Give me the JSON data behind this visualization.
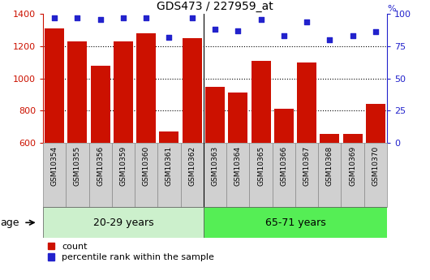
{
  "title": "GDS473 / 227959_at",
  "samples": [
    "GSM10354",
    "GSM10355",
    "GSM10356",
    "GSM10359",
    "GSM10360",
    "GSM10361",
    "GSM10362",
    "GSM10363",
    "GSM10364",
    "GSM10365",
    "GSM10366",
    "GSM10367",
    "GSM10368",
    "GSM10369",
    "GSM10370"
  ],
  "counts": [
    1310,
    1230,
    1080,
    1230,
    1280,
    670,
    1250,
    950,
    910,
    1110,
    810,
    1100,
    655,
    655,
    840
  ],
  "percentiles": [
    97,
    97,
    96,
    97,
    97,
    82,
    97,
    88,
    87,
    96,
    83,
    94,
    80,
    83,
    86
  ],
  "ylim_left": [
    600,
    1400
  ],
  "ylim_right": [
    0,
    100
  ],
  "yticks_left": [
    600,
    800,
    1000,
    1200,
    1400
  ],
  "yticks_right": [
    0,
    25,
    50,
    75,
    100
  ],
  "group1_label": "20-29 years",
  "group2_label": "65-71 years",
  "group1_count": 7,
  "group2_count": 8,
  "bar_color": "#cc1100",
  "dot_color": "#2222cc",
  "group1_bg": "#ccf0cc",
  "group2_bg": "#55ee55",
  "label_bg": "#d0d0d0",
  "label_border": "#888888",
  "legend_bar_label": "count",
  "legend_dot_label": "percentile rank within the sample",
  "age_label": "age",
  "right_axis_label": "%",
  "grid_ticks": [
    800,
    1000,
    1200
  ]
}
